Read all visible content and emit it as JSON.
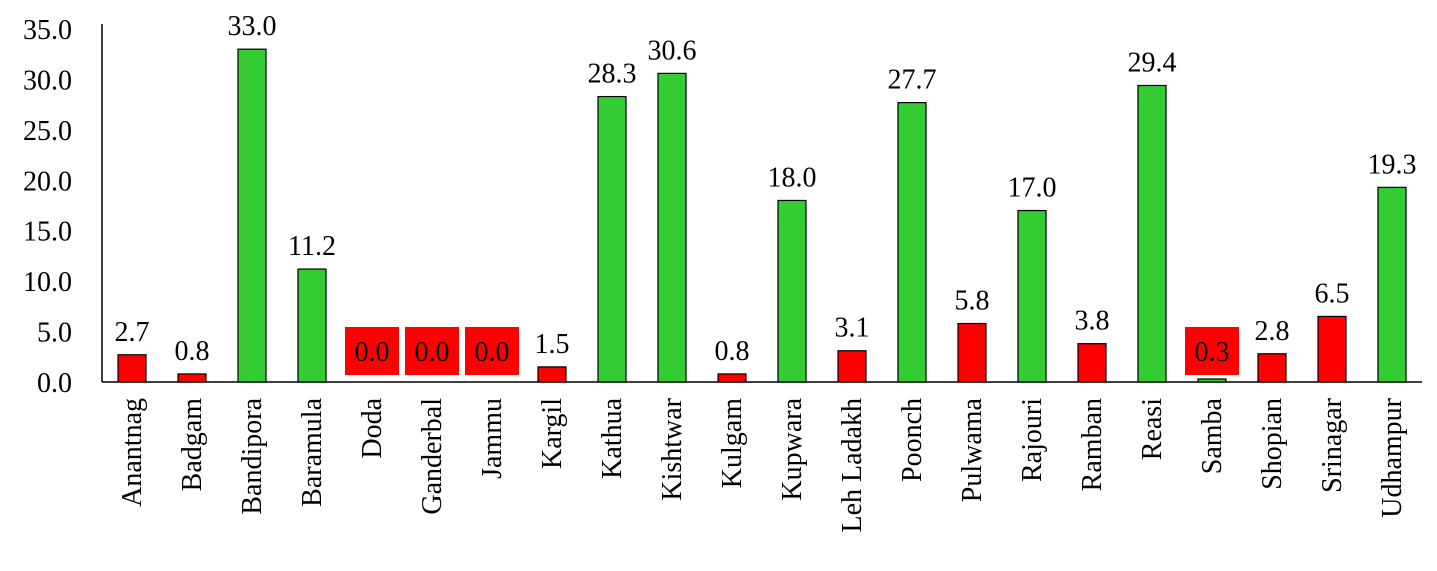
{
  "chart_data": {
    "type": "bar",
    "title": "",
    "xlabel": "",
    "ylabel": "",
    "ylim": [
      0,
      35
    ],
    "yticks": [
      "0.0",
      "5.0",
      "10.0",
      "15.0",
      "20.0",
      "25.0",
      "30.0",
      "35.0"
    ],
    "grid": false,
    "legend": "none",
    "categories": [
      "Anantnag",
      "Badgam",
      "Bandipora",
      "Baramula",
      "Doda",
      "Ganderbal",
      "Jammu",
      "Kargil",
      "Kathua",
      "Kishtwar",
      "Kulgam",
      "Kupwara",
      "Leh Ladakh",
      "Poonch",
      "Pulwama",
      "Rajouri",
      "Ramban",
      "Reasi",
      "Samba",
      "Shopian",
      "Srinagar",
      "Udhampur"
    ],
    "values": [
      2.7,
      0.8,
      33.0,
      11.2,
      0.0,
      0.0,
      0.0,
      1.5,
      28.3,
      30.6,
      0.8,
      18.0,
      3.1,
      27.7,
      5.8,
      17.0,
      3.8,
      29.4,
      0.3,
      2.8,
      6.5,
      19.3
    ],
    "value_labels": [
      "2.7",
      "0.8",
      "33.0",
      "11.2",
      "0.0",
      "0.0",
      "0.0",
      "1.5",
      "28.3",
      "30.6",
      "0.8",
      "18.0",
      "3.1",
      "27.7",
      "5.8",
      "17.0",
      "3.8",
      "29.4",
      "0.3",
      "2.8",
      "6.5",
      "19.3"
    ],
    "bar_status": [
      "low",
      "low",
      "high",
      "high",
      "low",
      "low",
      "low",
      "low",
      "high",
      "high",
      "low",
      "high",
      "low",
      "high",
      "low",
      "high",
      "low",
      "high",
      "high",
      "low",
      "low",
      "high"
    ],
    "highlighted_labels": [
      "Doda",
      "Ganderbal",
      "Jammu",
      "Samba"
    ],
    "colors": {
      "high": "#33cc33",
      "low": "#ff0000",
      "label_box": "#ff0000",
      "bar_stroke": "#000000",
      "axis": "#000000",
      "text": "#000000"
    }
  }
}
